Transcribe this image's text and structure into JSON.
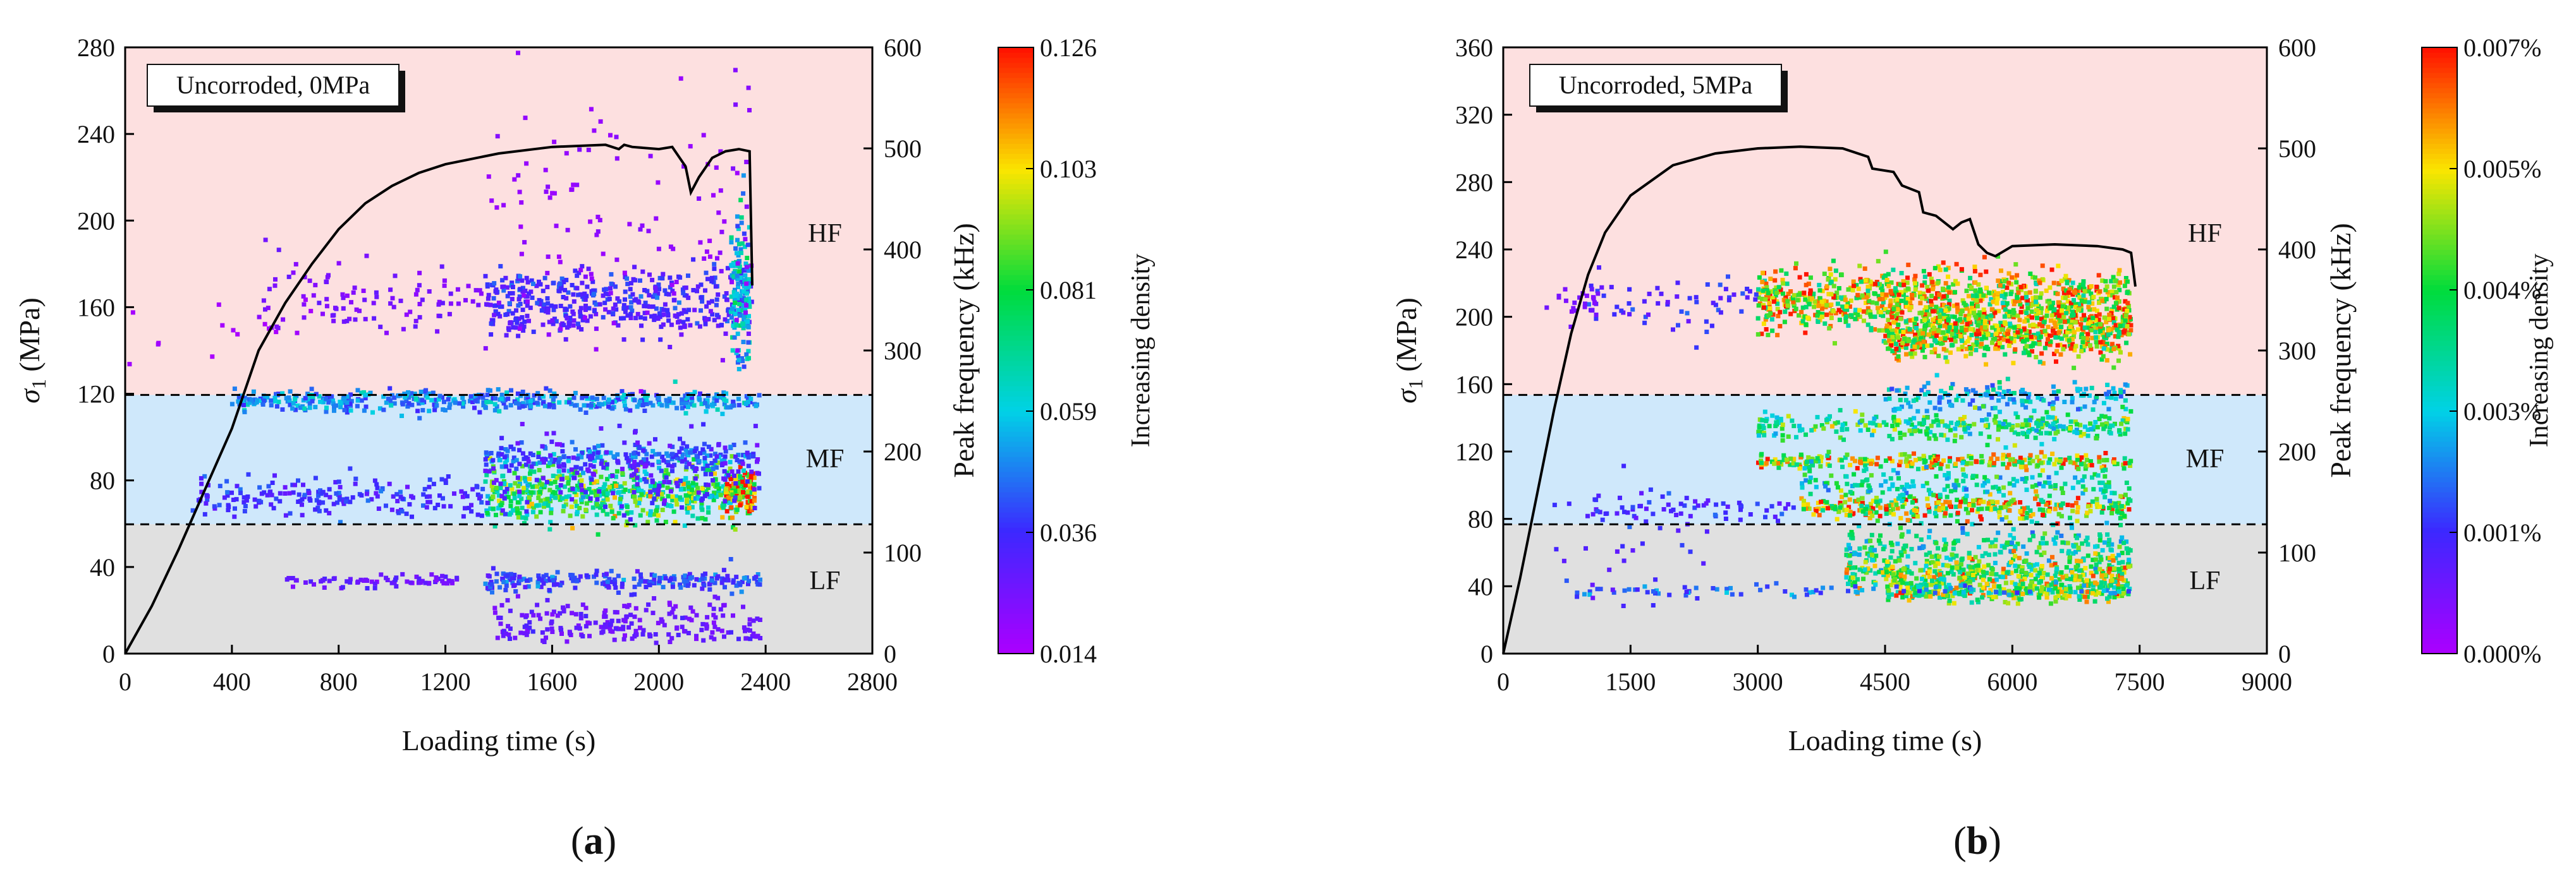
{
  "chart_data": [
    {
      "panel_label": "a",
      "type": "scatter",
      "title": "",
      "annotation": "Uncorroded, 0MPa",
      "xlabel": "Loading time (s)",
      "ylabel": "σ1 (MPa)",
      "ylabel_main": "σ",
      "ylabel_sub": "1",
      "ylabel_unit": " (MPa)",
      "y2label": "Peak frequency (kHz)",
      "colorbar_label": "Increasing density",
      "xlim": [
        0,
        2800
      ],
      "ylim": [
        0,
        280
      ],
      "y2lim": [
        0,
        600
      ],
      "x_ticks": [
        "0",
        "400",
        "800",
        "1200",
        "1600",
        "2000",
        "2400",
        "2800"
      ],
      "y_ticks": [
        "0",
        "40",
        "80",
        "120",
        "160",
        "200",
        "240",
        "280"
      ],
      "y2_ticks": [
        "0",
        "100",
        "200",
        "300",
        "400",
        "500",
        "600"
      ],
      "colorbar_ticks": [
        "0.014",
        "0.036",
        "0.059",
        "0.081",
        "0.103",
        "0.126"
      ],
      "bands": [
        {
          "name": "LF",
          "range_khz": [
            0,
            128
          ],
          "color": "#e0e0e0"
        },
        {
          "name": "MF",
          "range_khz": [
            128,
            256
          ],
          "color": "#cfe8fb"
        },
        {
          "name": "HF",
          "range_khz": [
            256,
            600
          ],
          "color": "#fde0e0"
        }
      ],
      "band_boundaries_khz": [
        128,
        256
      ],
      "stress_curve": {
        "x": [
          0,
          100,
          200,
          300,
          400,
          500,
          600,
          700,
          800,
          900,
          1000,
          1100,
          1200,
          1400,
          1600,
          1800,
          1850,
          1870,
          1900,
          2000,
          2050,
          2100,
          2120,
          2150,
          2200,
          2250,
          2300,
          2340,
          2350
        ],
        "y": [
          0,
          22,
          48,
          76,
          104,
          140,
          162,
          180,
          196,
          208,
          216,
          222,
          226,
          231,
          234,
          235,
          233,
          235,
          234,
          233,
          234,
          225,
          213,
          220,
          229,
          232,
          233,
          232,
          170
        ]
      },
      "ae_clusters": [
        {
          "x_range": [
            250,
            1350
          ],
          "f_center": 155,
          "spread": 10,
          "count": 200,
          "density": 0.04
        },
        {
          "x_range": [
            1350,
            2350
          ],
          "f_center": 160,
          "spread": 14,
          "count": 600,
          "density": 0.09
        },
        {
          "x_range": [
            2250,
            2360
          ],
          "f_center": 160,
          "spread": 10,
          "count": 120,
          "density": 0.126
        },
        {
          "x_range": [
            400,
            2380
          ],
          "f_center": 250,
          "spread": 5,
          "count": 480,
          "density": 0.055
        },
        {
          "x_range": [
            1350,
            2380
          ],
          "f_center": 195,
          "spread": 6,
          "count": 200,
          "density": 0.05
        },
        {
          "x_range": [
            1350,
            2380
          ],
          "f_center": 180,
          "spread": 20,
          "count": 200,
          "density": 0.035
        },
        {
          "x_range": [
            600,
            1300
          ],
          "f_center": 72,
          "spread": 3,
          "count": 70,
          "density": 0.03
        },
        {
          "x_range": [
            1350,
            2380
          ],
          "f_center": 72,
          "spread": 5,
          "count": 220,
          "density": 0.045
        },
        {
          "x_range": [
            1380,
            2380
          ],
          "f_center": 35,
          "spread": 10,
          "count": 140,
          "density": 0.03
        },
        {
          "x_range": [
            1380,
            2380
          ],
          "f_center": 20,
          "spread": 4,
          "count": 80,
          "density": 0.03
        },
        {
          "x_range": [
            1350,
            2350
          ],
          "f_center": 355,
          "spread": 12,
          "count": 300,
          "density": 0.04
        },
        {
          "x_range": [
            1350,
            2350
          ],
          "f_center": 330,
          "spread": 8,
          "count": 150,
          "density": 0.035
        },
        {
          "x_range": [
            2270,
            2340
          ],
          "f_center": 360,
          "spread": 40,
          "count": 150,
          "density": 0.065
        },
        {
          "x_range": [
            500,
            1350
          ],
          "f_center": 350,
          "spread": 20,
          "count": 100,
          "density": 0.025
        },
        {
          "x_range": [
            1350,
            2350
          ],
          "f_center": 420,
          "spread": 60,
          "count": 120,
          "density": 0.02
        },
        {
          "x_range": [
            0,
            700
          ],
          "f_center": 330,
          "spread": 20,
          "count": 15,
          "density": 0.015
        }
      ]
    },
    {
      "panel_label": "b",
      "type": "scatter",
      "title": "",
      "annotation": "Uncorroded, 5MPa",
      "xlabel": "Loading time (s)",
      "ylabel": "σ1 (MPa)",
      "ylabel_main": "σ",
      "ylabel_sub": "1",
      "ylabel_unit": " (MPa)",
      "y2label": "Peak frequency (kHz)",
      "colorbar_label": "Increasing density",
      "xlim": [
        0,
        9000
      ],
      "ylim": [
        0,
        360
      ],
      "y2lim": [
        0,
        600
      ],
      "x_ticks": [
        "0",
        "1500",
        "3000",
        "4500",
        "6000",
        "7500",
        "9000"
      ],
      "y_ticks": [
        "0",
        "40",
        "80",
        "120",
        "160",
        "200",
        "240",
        "280",
        "320",
        "360"
      ],
      "y2_ticks": [
        "0",
        "100",
        "200",
        "300",
        "400",
        "500",
        "600"
      ],
      "colorbar_ticks": [
        "0.000%",
        "0.001%",
        "0.003%",
        "0.004%",
        "0.005%",
        "0.007%"
      ],
      "bands": [
        {
          "name": "LF",
          "range_khz": [
            0,
            128
          ],
          "color": "#e0e0e0"
        },
        {
          "name": "MF",
          "range_khz": [
            128,
            256
          ],
          "color": "#cfe8fb"
        },
        {
          "name": "HF",
          "range_khz": [
            256,
            600
          ],
          "color": "#fde0e0"
        }
      ],
      "band_boundaries_khz": [
        128,
        256
      ],
      "stress_curve": {
        "x": [
          0,
          200,
          400,
          600,
          800,
          1000,
          1200,
          1500,
          2000,
          2500,
          3000,
          3500,
          4000,
          4300,
          4350,
          4600,
          4700,
          4900,
          4950,
          5100,
          5300,
          5400,
          5500,
          5600,
          5700,
          5800,
          6000,
          6500,
          7000,
          7300,
          7400,
          7450
        ],
        "y": [
          0,
          45,
          95,
          145,
          190,
          225,
          250,
          272,
          290,
          297,
          300,
          301,
          300,
          295,
          288,
          286,
          278,
          274,
          262,
          260,
          252,
          256,
          258,
          243,
          238,
          236,
          242,
          243,
          242,
          240,
          238,
          218
        ]
      },
      "ae_clusters": [
        {
          "x_range": [
            3000,
            7400
          ],
          "f_center": 350,
          "spread": 15,
          "count": 900,
          "density": 0.0008
        },
        {
          "x_range": [
            1000,
            3000
          ],
          "f_center": 345,
          "spread": 15,
          "count": 60,
          "density": 0.0002
        },
        {
          "x_range": [
            4500,
            7400
          ],
          "f_center": 318,
          "spread": 12,
          "count": 700,
          "density": 0.0008
        },
        {
          "x_range": [
            4500,
            7400
          ],
          "f_center": 255,
          "spread": 8,
          "count": 150,
          "density": 0.0004
        },
        {
          "x_range": [
            3000,
            7400
          ],
          "f_center": 225,
          "spread": 7,
          "count": 300,
          "density": 0.0006
        },
        {
          "x_range": [
            3000,
            7400
          ],
          "f_center": 190,
          "spread": 4,
          "count": 240,
          "density": 0.0008
        },
        {
          "x_range": [
            3500,
            7400
          ],
          "f_center": 145,
          "spread": 6,
          "count": 320,
          "density": 0.0008
        },
        {
          "x_range": [
            1000,
            3500
          ],
          "f_center": 145,
          "spread": 6,
          "count": 60,
          "density": 0.0002
        },
        {
          "x_range": [
            3500,
            7400
          ],
          "f_center": 168,
          "spread": 8,
          "count": 180,
          "density": 0.0005
        },
        {
          "x_range": [
            4000,
            7400
          ],
          "f_center": 105,
          "spread": 10,
          "count": 220,
          "density": 0.0005
        },
        {
          "x_range": [
            4000,
            7400
          ],
          "f_center": 80,
          "spread": 8,
          "count": 380,
          "density": 0.0007
        },
        {
          "x_range": [
            4500,
            7400
          ],
          "f_center": 62,
          "spread": 6,
          "count": 260,
          "density": 0.0007
        },
        {
          "x_range": [
            800,
            7400
          ],
          "f_center": 62,
          "spread": 3,
          "count": 80,
          "density": 0.0003
        },
        {
          "x_range": [
            600,
            2500
          ],
          "f_center": 100,
          "spread": 40,
          "count": 40,
          "density": 0.0002
        },
        {
          "x_range": [
            500,
            1200
          ],
          "f_center": 345,
          "spread": 10,
          "count": 25,
          "density": 0.0001
        }
      ]
    }
  ]
}
